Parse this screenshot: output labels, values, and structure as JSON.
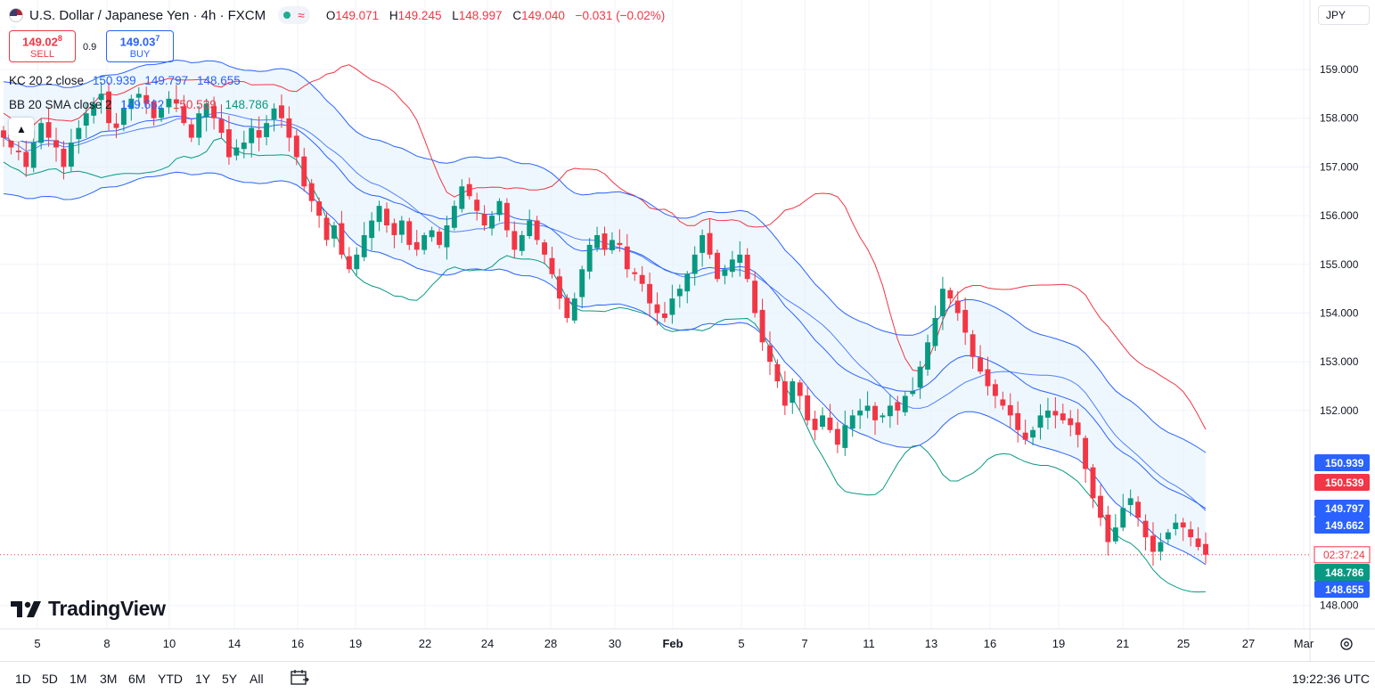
{
  "header": {
    "title": "U.S. Dollar / Japanese Yen · 4h · FXCM",
    "ohlc": [
      {
        "k": "O",
        "v": "149.071"
      },
      {
        "k": "H",
        "v": "149.245"
      },
      {
        "k": "L",
        "v": "148.997"
      },
      {
        "k": "C",
        "v": "149.040"
      }
    ],
    "change": "−0.031 (−0.02%)",
    "currency": "JPY"
  },
  "trade": {
    "sell_price": "149.02",
    "sell_sup": "8",
    "sell_label": "SELL",
    "spread": "0.9",
    "buy_price": "149.03",
    "buy_sup": "7",
    "buy_label": "BUY"
  },
  "indicators": {
    "kc": {
      "name": "KC 20 2 close",
      "upper": "150.939",
      "middle": "149.797",
      "lower": "148.655"
    },
    "bb": {
      "name": "BB 20 SMA close 2",
      "basis": "149.662",
      "upper": "150.539",
      "lower": "148.786"
    }
  },
  "logo": "TradingView",
  "timeframes": [
    "1D",
    "5D",
    "1M",
    "3M",
    "6M",
    "YTD",
    "1Y",
    "5Y",
    "All"
  ],
  "clock": "19:22:36 UTC",
  "countdown": "02:37:24",
  "colors": {
    "up": "#089981",
    "down": "#f23645",
    "kc": "#2962ff",
    "bb_upper": "#f23645",
    "bb_lower": "#089981",
    "band_fill": "#e3f2fd"
  },
  "chart_data": {
    "type": "candlestick",
    "yticks": [
      "159.000",
      "158.000",
      "157.000",
      "156.000",
      "155.000",
      "154.000",
      "153.000",
      "152.000",
      "148.000"
    ],
    "xticks": [
      "5",
      "8",
      "10",
      "14",
      "16",
      "19",
      "22",
      "24",
      "28",
      "30",
      "Feb",
      "5",
      "7",
      "11",
      "13",
      "16",
      "19",
      "21",
      "25",
      "27",
      "Mar"
    ],
    "ylim": [
      147.8,
      159.5
    ],
    "price_labels": [
      {
        "value": "150.939",
        "color": "#2962ff"
      },
      {
        "value": "150.539",
        "color": "#f23645"
      },
      {
        "value": "149.797",
        "color": "#2962ff"
      },
      {
        "value": "149.662",
        "color": "#2962ff"
      },
      {
        "value": "148.786",
        "color": "#089981"
      },
      {
        "value": "148.655",
        "color": "#2962ff"
      }
    ],
    "current_price": 149.04,
    "closes": [
      157.6,
      157.4,
      157.3,
      157.0,
      157.5,
      157.9,
      157.6,
      157.4,
      157.0,
      157.5,
      157.8,
      158.1,
      158.3,
      158.5,
      157.9,
      157.8,
      158.2,
      158.4,
      158.5,
      158.3,
      158.0,
      158.2,
      158.4,
      158.3,
      157.9,
      157.6,
      158.1,
      158.3,
      158.0,
      157.7,
      157.2,
      157.4,
      157.5,
      157.8,
      157.6,
      157.9,
      158.2,
      158.0,
      157.6,
      157.2,
      156.6,
      156.3,
      156.0,
      155.5,
      155.8,
      155.2,
      154.9,
      155.2,
      155.6,
      155.9,
      156.2,
      155.8,
      155.6,
      155.9,
      155.4,
      155.3,
      155.6,
      155.7,
      155.4,
      155.8,
      156.2,
      156.6,
      156.4,
      156.1,
      155.8,
      156.0,
      156.3,
      155.7,
      155.3,
      155.6,
      155.9,
      155.5,
      155.2,
      154.8,
      154.3,
      153.9,
      154.3,
      154.9,
      155.4,
      155.6,
      155.3,
      155.5,
      155.4,
      154.9,
      154.8,
      154.6,
      154.2,
      154.0,
      153.9,
      154.3,
      154.5,
      154.8,
      155.2,
      155.6,
      155.2,
      154.7,
      154.9,
      155.1,
      155.2,
      154.7,
      154.0,
      153.4,
      153.0,
      152.6,
      152.1,
      152.6,
      152.3,
      151.8,
      151.6,
      151.9,
      151.6,
      151.3,
      151.7,
      151.9,
      152.0,
      152.1,
      151.8,
      151.9,
      152.1,
      152.0,
      152.3,
      152.4,
      152.9,
      153.4,
      153.9,
      154.5,
      154.3,
      154.0,
      153.6,
      153.1,
      152.8,
      152.5,
      152.3,
      152.1,
      151.9,
      151.6,
      151.4,
      151.6,
      151.9,
      152.0,
      151.9,
      151.8,
      151.7,
      151.5,
      150.8,
      150.2,
      149.8,
      149.3,
      149.6,
      150.0,
      150.2,
      149.8,
      149.4,
      149.1,
      149.3,
      149.5,
      149.7,
      149.6,
      149.4,
      149.2,
      149.04
    ]
  }
}
